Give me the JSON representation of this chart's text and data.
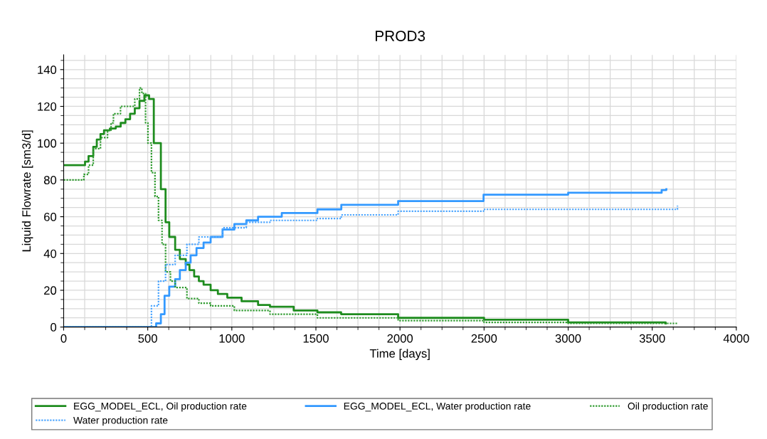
{
  "chart_data": {
    "type": "step",
    "title": "PROD3",
    "xlabel": "Time [days]",
    "ylabel": "Liquid Flowrate [sm3/d]",
    "xlim": [
      0,
      4000
    ],
    "xticks": [
      0,
      500,
      1000,
      1500,
      2000,
      2500,
      3000,
      3500,
      4000
    ],
    "ylim": [
      0,
      148
    ],
    "yticks": [
      0,
      20,
      40,
      60,
      80,
      100,
      120,
      140
    ],
    "grid": true,
    "legend": "bottom",
    "marker": "none",
    "series": [
      {
        "name": "EGG_MODEL_ECL, Oil production rate",
        "color": "#1e8c1e",
        "line_style": "solid",
        "x": [
          0,
          127,
          148,
          176,
          197,
          219,
          240,
          275,
          310,
          339,
          367,
          395,
          423,
          451,
          480,
          508,
          536,
          578,
          606,
          628,
          663,
          691,
          726,
          748,
          776,
          804,
          832,
          874,
          917,
          973,
          1058,
          1156,
          1227,
          1368,
          1509,
          1650,
          1989,
          2500,
          3000,
          3580
        ],
        "values": [
          88,
          90,
          93,
          98,
          102,
          105,
          107,
          108,
          109,
          111,
          113,
          116,
          119,
          123,
          126,
          124,
          100,
          75,
          57,
          49,
          42,
          37,
          34,
          31,
          27.5,
          25,
          23,
          20,
          18,
          16,
          14,
          12,
          11,
          9,
          8,
          7,
          5,
          4,
          2.5,
          2
        ]
      },
      {
        "name": "EGG_MODEL_ECL, Water production rate",
        "color": "#3399ff",
        "line_style": "solid",
        "x": [
          0,
          536,
          550,
          578,
          600,
          628,
          663,
          691,
          726,
          755,
          790,
          832,
          874,
          945,
          1015,
          1086,
          1156,
          1297,
          1509,
          1651,
          1989,
          2497,
          3000,
          3556,
          3584
        ],
        "values": [
          0,
          0,
          2,
          7,
          17,
          22,
          26,
          31,
          35,
          39,
          43,
          46,
          49,
          53,
          56,
          58,
          60,
          62,
          64,
          66.5,
          68.5,
          72,
          73,
          74.5,
          75
        ]
      },
      {
        "name": "Oil production rate",
        "color": "#2e9a2e",
        "line_style": "dotted",
        "x": [
          0,
          120,
          148,
          176,
          219,
          261,
          282,
          296,
          338,
          423,
          451,
          465,
          487,
          501,
          522,
          543,
          564,
          585,
          606,
          635,
          663,
          733,
          804,
          874,
          1015,
          1227,
          1509,
          1989,
          2500,
          3000,
          3650
        ],
        "values": [
          80,
          83,
          88,
          97,
          103,
          107,
          111,
          116,
          120,
          124,
          130,
          127,
          111,
          100,
          84,
          71,
          58,
          45,
          30,
          25,
          21.5,
          15.5,
          13,
          11.5,
          9,
          7,
          5,
          3.5,
          2.5,
          2,
          1.5
        ]
      },
      {
        "name": "Water production rate",
        "color": "#4da6ff",
        "line_style": "dotted",
        "x": [
          0,
          480,
          522,
          564,
          606,
          663,
          733,
          804,
          945,
          1086,
          1227,
          1509,
          1651,
          1989,
          2497,
          3650
        ],
        "values": [
          0,
          0,
          11.5,
          25,
          34,
          39,
          45,
          49,
          54,
          57,
          58,
          59,
          61,
          63,
          64,
          66
        ]
      }
    ]
  }
}
